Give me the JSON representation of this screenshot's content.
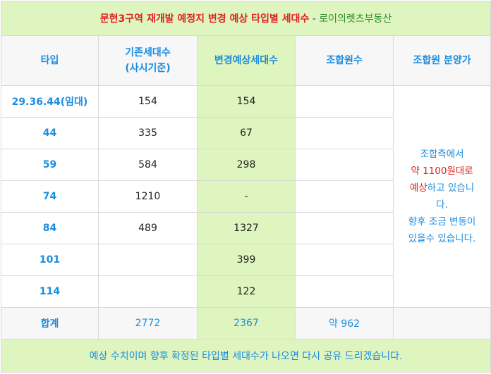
{
  "title": {
    "main": "문현3구역 재개발 예정지 변경 예상 타입별 세대수",
    "separator": " - ",
    "source": "로이의렛츠부동산"
  },
  "headers": {
    "type": "타입",
    "existing_line1": "기존세대수",
    "existing_line2": "(사시기준)",
    "expected": "변경예상세대수",
    "members": "조합원수",
    "member_price": "조합원 분양가"
  },
  "rows": [
    {
      "type": "29.36.44(임대)",
      "existing": "154",
      "expected": "154",
      "members": ""
    },
    {
      "type": "44",
      "existing": "335",
      "expected": "67",
      "members": ""
    },
    {
      "type": "59",
      "existing": "584",
      "expected": "298",
      "members": ""
    },
    {
      "type": "74",
      "existing": "1210",
      "expected": "-",
      "members": ""
    },
    {
      "type": "84",
      "existing": "489",
      "expected": "1327",
      "members": ""
    },
    {
      "type": "101",
      "existing": "",
      "expected": "399",
      "members": ""
    },
    {
      "type": "114",
      "existing": "",
      "expected": "122",
      "members": ""
    }
  ],
  "note": {
    "line1": "조합측에서",
    "line2": "약 1100원대로",
    "line3_red": "예상",
    "line3_rest": "하고 있습니",
    "line4": "다.",
    "line5": "향후 조금 변동이",
    "line6": "있을수 있습니다."
  },
  "total": {
    "label": "합계",
    "existing": "2772",
    "expected": "2367",
    "members": "약 962",
    "member_price": ""
  },
  "footer": "예상 수치이며 향후 확정된 타입별 세대수가 나오면 다시 공유 드리겠습니다."
}
